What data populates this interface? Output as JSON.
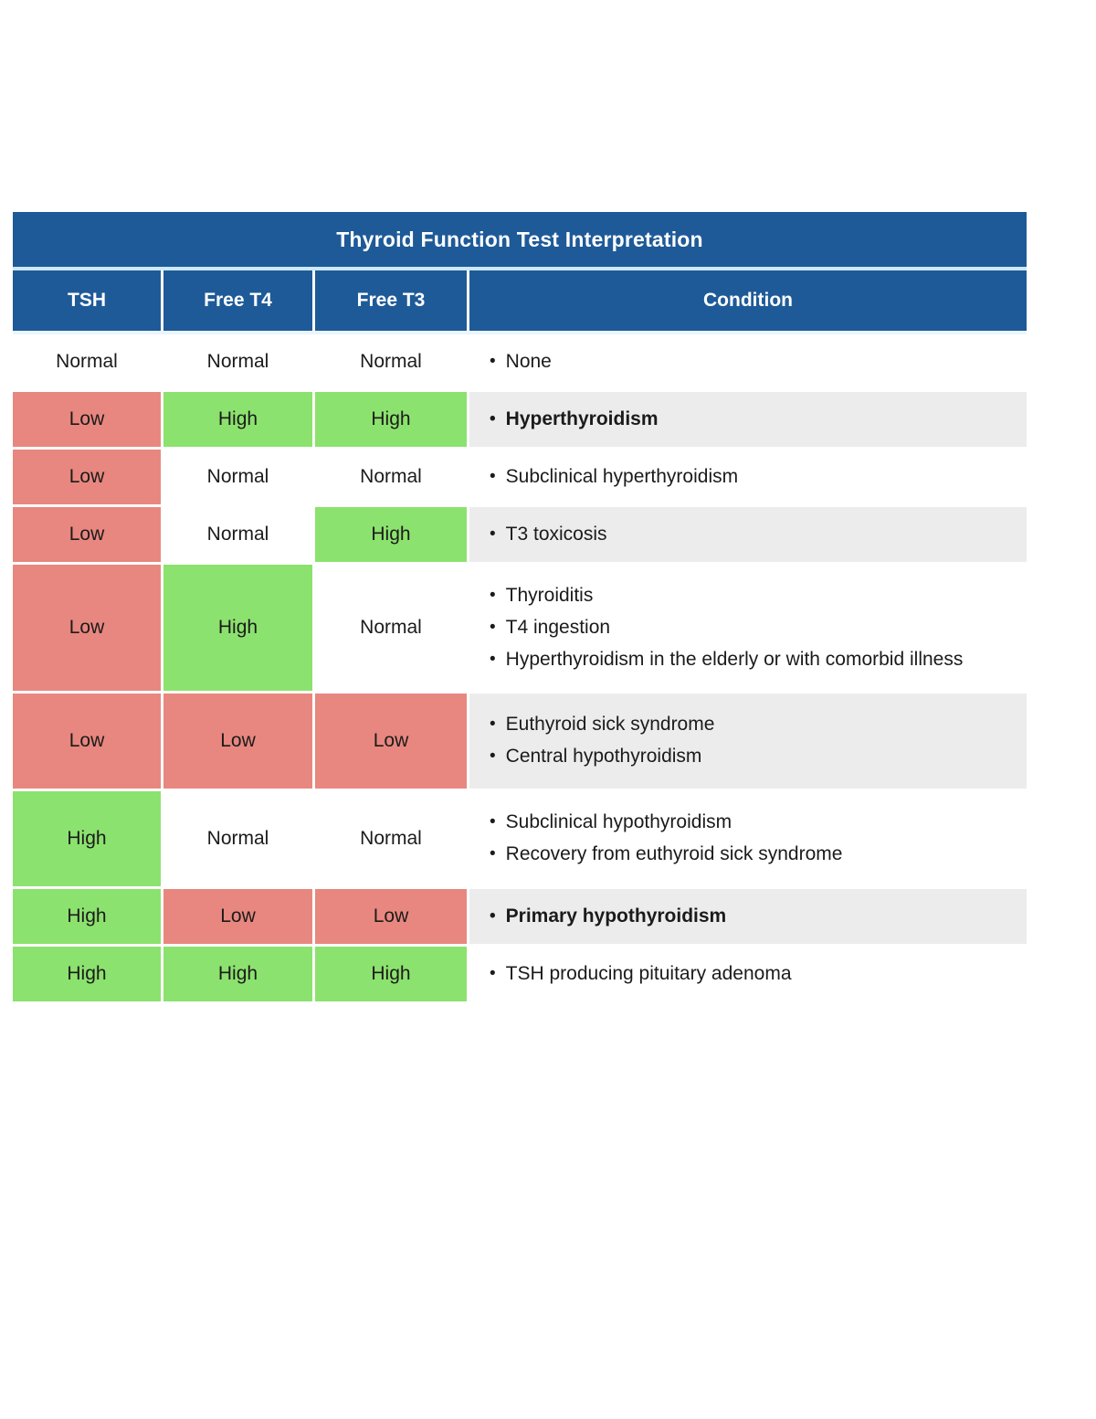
{
  "table": {
    "title": "Thyroid Function Test Interpretation",
    "columns": [
      {
        "label": "TSH"
      },
      {
        "label": "Free T4"
      },
      {
        "label": "Free T3"
      },
      {
        "label": "Condition"
      }
    ],
    "colors": {
      "header_blue": "#1e5a98",
      "low_red": "#e8877f",
      "high_green": "#8ce26e",
      "zebra_gray": "#ececec",
      "separator_cyan": "#cfe9f6"
    },
    "rows": [
      {
        "values": [
          {
            "text": "Normal",
            "level": "normal"
          },
          {
            "text": "Normal",
            "level": "normal"
          },
          {
            "text": "Normal",
            "level": "normal"
          }
        ],
        "conditions": [
          "None"
        ],
        "bold": false,
        "zebra": false
      },
      {
        "values": [
          {
            "text": "Low",
            "level": "low"
          },
          {
            "text": "High",
            "level": "high"
          },
          {
            "text": "High",
            "level": "high"
          }
        ],
        "conditions": [
          "Hyperthyroidism"
        ],
        "bold": true,
        "zebra": true
      },
      {
        "values": [
          {
            "text": "Low",
            "level": "low"
          },
          {
            "text": "Normal",
            "level": "normal"
          },
          {
            "text": "Normal",
            "level": "normal"
          }
        ],
        "conditions": [
          "Subclinical hyperthyroidism"
        ],
        "bold": false,
        "zebra": false
      },
      {
        "values": [
          {
            "text": "Low",
            "level": "low"
          },
          {
            "text": "Normal",
            "level": "normal"
          },
          {
            "text": "High",
            "level": "high"
          }
        ],
        "conditions": [
          "T3 toxicosis"
        ],
        "bold": false,
        "zebra": true
      },
      {
        "values": [
          {
            "text": "Low",
            "level": "low"
          },
          {
            "text": "High",
            "level": "high"
          },
          {
            "text": "Normal",
            "level": "normal"
          }
        ],
        "conditions": [
          "Thyroiditis",
          "T4 ingestion",
          "Hyperthyroidism in the elderly or with comorbid illness"
        ],
        "bold": false,
        "zebra": false
      },
      {
        "values": [
          {
            "text": "Low",
            "level": "low"
          },
          {
            "text": "Low",
            "level": "low"
          },
          {
            "text": "Low",
            "level": "low"
          }
        ],
        "conditions": [
          "Euthyroid sick syndrome",
          "Central hypothyroidism"
        ],
        "bold": false,
        "zebra": true
      },
      {
        "values": [
          {
            "text": "High",
            "level": "high"
          },
          {
            "text": "Normal",
            "level": "normal"
          },
          {
            "text": "Normal",
            "level": "normal"
          }
        ],
        "conditions": [
          "Subclinical hypothyroidism",
          "Recovery from euthyroid sick syndrome"
        ],
        "bold": false,
        "zebra": false
      },
      {
        "values": [
          {
            "text": "High",
            "level": "high"
          },
          {
            "text": "Low",
            "level": "low"
          },
          {
            "text": "Low",
            "level": "low"
          }
        ],
        "conditions": [
          "Primary hypothyroidism"
        ],
        "bold": true,
        "zebra": true
      },
      {
        "values": [
          {
            "text": "High",
            "level": "high"
          },
          {
            "text": "High",
            "level": "high"
          },
          {
            "text": "High",
            "level": "high"
          }
        ],
        "conditions": [
          "TSH producing pituitary adenoma"
        ],
        "bold": false,
        "zebra": false
      }
    ]
  }
}
